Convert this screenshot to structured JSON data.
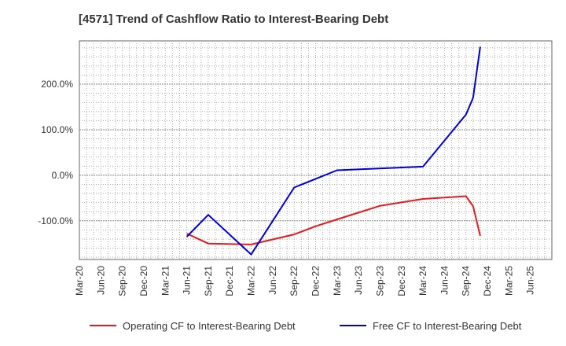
{
  "chart_data": {
    "type": "line",
    "title": "[4571]  Trend of Cashflow Ratio to Interest-Bearing Debt",
    "xlabel": "",
    "ylabel": "",
    "ylim": [
      -185,
      295
    ],
    "grid": true,
    "legend_position": "bottom",
    "x_ticks": [
      "Mar-20",
      "Jun-20",
      "Sep-20",
      "Dec-20",
      "Mar-21",
      "Jun-21",
      "Sep-21",
      "Dec-21",
      "Mar-22",
      "Jun-22",
      "Sep-22",
      "Dec-22",
      "Mar-23",
      "Jun-23",
      "Sep-23",
      "Dec-23",
      "Mar-24",
      "Jun-24",
      "Sep-24",
      "Dec-24",
      "Mar-25",
      "Jun-25"
    ],
    "y_ticks": [
      {
        "value": -100,
        "label": "-100.0%"
      },
      {
        "value": 0,
        "label": "0.0%"
      },
      {
        "value": 100,
        "label": "100.0%"
      },
      {
        "value": 200,
        "label": "200.0%"
      }
    ],
    "series": [
      {
        "name": "Operating CF to Interest-Bearing Debt",
        "color": "#e41a1c",
        "points": [
          {
            "x": "Jun-21",
            "y": -128
          },
          {
            "x": "Sep-21",
            "y": -150
          },
          {
            "x": "Mar-22",
            "y": -152
          },
          {
            "x": "Sep-22",
            "y": -130
          },
          {
            "x": "Dec-22",
            "y": -112
          },
          {
            "x": "Mar-23",
            "y": -97
          },
          {
            "x": "Sep-23",
            "y": -67
          },
          {
            "x": "Mar-24",
            "y": -52
          },
          {
            "x": "Sep-24",
            "y": -46
          },
          {
            "x": "Oct-24",
            "y": -68
          },
          {
            "x": "Nov-24",
            "y": -133
          }
        ]
      },
      {
        "name": "Free CF to Interest-Bearing Debt",
        "color": "#0000dd",
        "points": [
          {
            "x": "Jun-21",
            "y": -135
          },
          {
            "x": "Sep-21",
            "y": -87
          },
          {
            "x": "Mar-22",
            "y": -174
          },
          {
            "x": "Sep-22",
            "y": -27
          },
          {
            "x": "Mar-23",
            "y": 11
          },
          {
            "x": "Mar-24",
            "y": 19
          },
          {
            "x": "Sep-24",
            "y": 133
          },
          {
            "x": "Oct-24",
            "y": 170
          },
          {
            "x": "Nov-24",
            "y": 282
          }
        ]
      }
    ]
  }
}
